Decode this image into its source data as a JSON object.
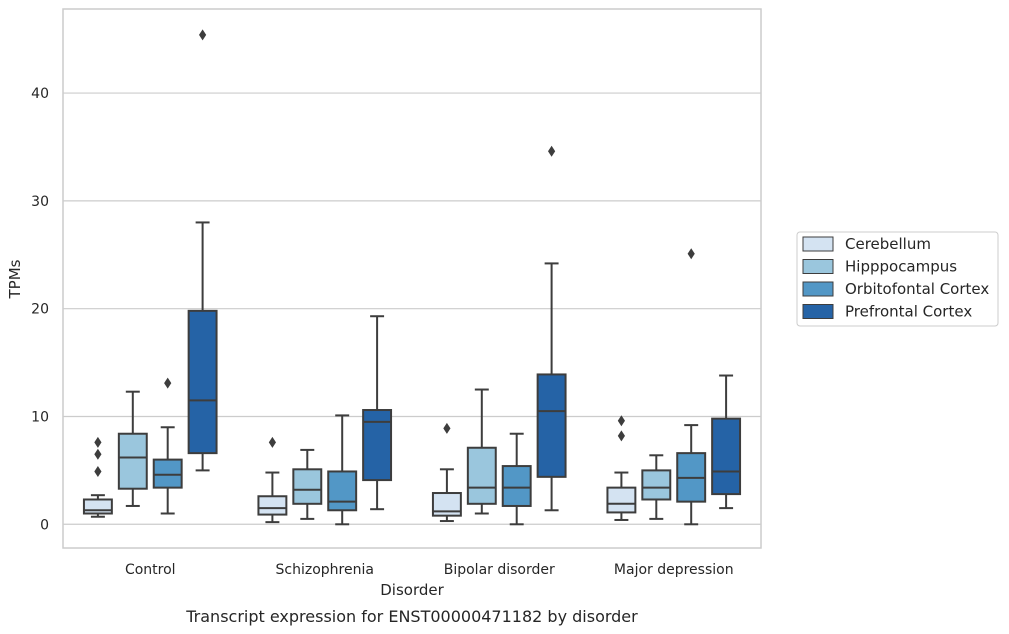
{
  "chart_data": {
    "type": "box",
    "title": "",
    "caption": "Transcript expression for ENST00000471182 by disorder",
    "xlabel": "Disorder",
    "ylabel": "TPMs",
    "ylim": [
      -2.2,
      47.8
    ],
    "yticks": [
      0,
      10,
      20,
      30,
      40
    ],
    "grid": "horizontal",
    "legend_position": "right",
    "categories": [
      "Control",
      "Schizophrenia",
      "Bipolar disorder",
      "Major depression"
    ],
    "series": [
      {
        "name": "Cerebellum",
        "color": "#d4e3f2",
        "boxes": [
          {
            "whisker_low": 0.7,
            "q1": 1.0,
            "median": 1.3,
            "q3": 2.3,
            "whisker_high": 2.7,
            "outliers": [
              4.9,
              6.5,
              7.6
            ]
          },
          {
            "whisker_low": 0.2,
            "q1": 0.9,
            "median": 1.5,
            "q3": 2.6,
            "whisker_high": 4.8,
            "outliers": [
              7.6
            ]
          },
          {
            "whisker_low": 0.3,
            "q1": 0.8,
            "median": 1.2,
            "q3": 2.9,
            "whisker_high": 5.1,
            "outliers": [
              8.9
            ]
          },
          {
            "whisker_low": 0.4,
            "q1": 1.1,
            "median": 1.9,
            "q3": 3.4,
            "whisker_high": 4.8,
            "outliers": [
              8.2,
              9.6
            ]
          }
        ]
      },
      {
        "name": "Hipppocampus",
        "color": "#9ac6dd",
        "boxes": [
          {
            "whisker_low": 1.7,
            "q1": 3.3,
            "median": 6.2,
            "q3": 8.4,
            "whisker_high": 12.3,
            "outliers": []
          },
          {
            "whisker_low": 0.5,
            "q1": 1.9,
            "median": 3.2,
            "q3": 5.1,
            "whisker_high": 6.9,
            "outliers": []
          },
          {
            "whisker_low": 1.0,
            "q1": 1.9,
            "median": 3.4,
            "q3": 7.1,
            "whisker_high": 12.5,
            "outliers": []
          },
          {
            "whisker_low": 0.5,
            "q1": 2.3,
            "median": 3.4,
            "q3": 5.0,
            "whisker_high": 6.4,
            "outliers": []
          }
        ]
      },
      {
        "name": "Orbitofontal Cortex",
        "color": "#5297c6",
        "boxes": [
          {
            "whisker_low": 1.0,
            "q1": 3.4,
            "median": 4.6,
            "q3": 6.0,
            "whisker_high": 9.0,
            "outliers": [
              13.1
            ]
          },
          {
            "whisker_low": 0.0,
            "q1": 1.3,
            "median": 2.1,
            "q3": 4.9,
            "whisker_high": 10.1,
            "outliers": []
          },
          {
            "whisker_low": 0.0,
            "q1": 1.7,
            "median": 3.4,
            "q3": 5.4,
            "whisker_high": 8.4,
            "outliers": []
          },
          {
            "whisker_low": 0.0,
            "q1": 2.1,
            "median": 4.3,
            "q3": 6.6,
            "whisker_high": 9.2,
            "outliers": [
              25.1
            ]
          }
        ]
      },
      {
        "name": "Prefrontal Cortex",
        "color": "#2563a6",
        "boxes": [
          {
            "whisker_low": 5.0,
            "q1": 6.6,
            "median": 11.5,
            "q3": 19.8,
            "whisker_high": 28.0,
            "outliers": [
              45.4
            ]
          },
          {
            "whisker_low": 1.4,
            "q1": 4.1,
            "median": 9.5,
            "q3": 10.6,
            "whisker_high": 19.3,
            "outliers": []
          },
          {
            "whisker_low": 1.3,
            "q1": 4.4,
            "median": 10.5,
            "q3": 13.9,
            "whisker_high": 24.2,
            "outliers": [
              34.6
            ]
          },
          {
            "whisker_low": 1.5,
            "q1": 2.8,
            "median": 4.9,
            "q3": 9.8,
            "whisker_high": 13.8,
            "outliers": []
          }
        ]
      }
    ]
  }
}
